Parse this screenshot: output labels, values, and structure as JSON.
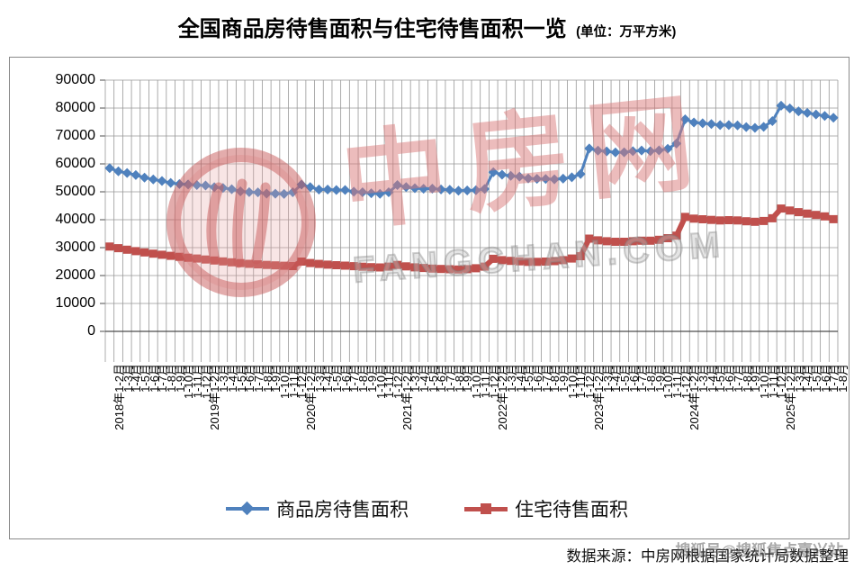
{
  "title": {
    "main": "全国商品房待售面积与住宅待售面积一览",
    "unit": "(单位：万平方米)"
  },
  "source_note": "数据来源：中房网根据国家统计局数据整理",
  "watermark": {
    "brand_chars": [
      "中",
      "房",
      "网"
    ],
    "domain": "FANGCHAN.COM",
    "overlay_text": "搜狐号@搜狐焦点嘉兴站"
  },
  "legend": [
    {
      "label": "商品房待售面积",
      "color": "#4F81BD",
      "marker": "diamond"
    },
    {
      "label": "住宅待售面积",
      "color": "#C0504D",
      "marker": "square"
    }
  ],
  "chart_data": {
    "type": "line",
    "title": "全国商品房待售面积与住宅待售面积一览",
    "unit": "万平方米",
    "grid": true,
    "legend_position": "bottom",
    "ylim": [
      0,
      90000
    ],
    "y_ticks": [
      0,
      10000,
      20000,
      30000,
      40000,
      50000,
      60000,
      70000,
      80000,
      90000
    ],
    "categories": [
      "2018年1-2月",
      "1-3月",
      "1-4月",
      "1-5月",
      "1-6月",
      "1-7月",
      "1-8月",
      "1-9月",
      "1-10月",
      "1-11月",
      "1-12月",
      "2019年1-2月",
      "1-3月",
      "1-4月",
      "1-5月",
      "1-6月",
      "1-7月",
      "1-8月",
      "1-9月",
      "1-10月",
      "1-11月",
      "1-12月",
      "2020年1-2月",
      "1-3月",
      "1-4月",
      "1-5月",
      "1-6月",
      "1-7月",
      "1-8月",
      "1-9月",
      "1-10月",
      "1-11月",
      "1-12月",
      "2021年1-2月",
      "1-3月",
      "1-4月",
      "1-5月",
      "1-6月",
      "1-7月",
      "1-8月",
      "1-9月",
      "1-10月",
      "1-11月",
      "1-12月",
      "2022年1-2月",
      "1-3月",
      "1-4月",
      "1-5月",
      "1-6月",
      "1-7月",
      "1-8月",
      "1-9月",
      "1-10月",
      "1-11月",
      "1-12月",
      "2023年1-2月",
      "1-3月",
      "1-4月",
      "1-5月",
      "1-6月",
      "1-7月",
      "1-8月",
      "1-9月",
      "1-10月",
      "1-11月",
      "1-12月",
      "2024年1-2月",
      "1-3月",
      "1-4月",
      "1-5月",
      "1-6月",
      "1-7月",
      "1-8月",
      "1-9月",
      "1-10月",
      "1-11月",
      "1-12月",
      "2025年1-2月",
      "1-3月",
      "1-4月",
      "1-5月",
      "1-6月",
      "1-7月",
      "1-8月"
    ],
    "series": [
      {
        "name": "商品房待售面积",
        "color": "#4F81BD",
        "marker": "diamond",
        "values": [
          58468,
          57329,
          56726,
          56010,
          55083,
          54428,
          53873,
          53191,
          52789,
          52627,
          52414,
          52251,
          51646,
          51380,
          50928,
          50162,
          49876,
          49784,
          49346,
          49323,
          49221,
          49821,
          52563,
          51701,
          50826,
          50818,
          50662,
          50648,
          50052,
          49821,
          49492,
          49287,
          49850,
          52425,
          51693,
          51305,
          51088,
          51136,
          50854,
          50738,
          50385,
          50494,
          50576,
          51023,
          57026,
          56113,
          55734,
          55433,
          54784,
          54655,
          54605,
          54483,
          54734,
          55203,
          56366,
          65528,
          64770,
          64487,
          64120,
          64159,
          64564,
          64795,
          64537,
          64835,
          65385,
          67295,
          75969,
          74833,
          74553,
          74256,
          73894,
          73926,
          73784,
          73176,
          72909,
          73286,
          75327,
          80864,
          79899,
          78814,
          78258,
          77691,
          77181,
          76523
        ]
      },
      {
        "name": "住宅待售面积",
        "color": "#C0504D",
        "marker": "square",
        "values": [
          30400,
          29800,
          29250,
          28750,
          28300,
          27850,
          27450,
          27050,
          26700,
          26400,
          26100,
          25750,
          25400,
          25050,
          24750,
          24450,
          24200,
          24000,
          23800,
          23650,
          23500,
          23400,
          25000,
          24500,
          24150,
          23900,
          23700,
          23550,
          23350,
          23150,
          23000,
          22900,
          23200,
          23800,
          23300,
          22950,
          22700,
          22500,
          22350,
          22250,
          22150,
          22300,
          22600,
          23200,
          26000,
          25500,
          25250,
          25100,
          24900,
          24900,
          25000,
          25150,
          25500,
          26100,
          26950,
          33240,
          32600,
          32300,
          32100,
          32100,
          32300,
          32500,
          32500,
          32800,
          33400,
          34300,
          41000,
          40400,
          40150,
          39950,
          39750,
          39850,
          39750,
          39450,
          39250,
          39550,
          40500,
          44000,
          43300,
          42700,
          42200,
          41700,
          41200,
          40200
        ]
      }
    ]
  }
}
